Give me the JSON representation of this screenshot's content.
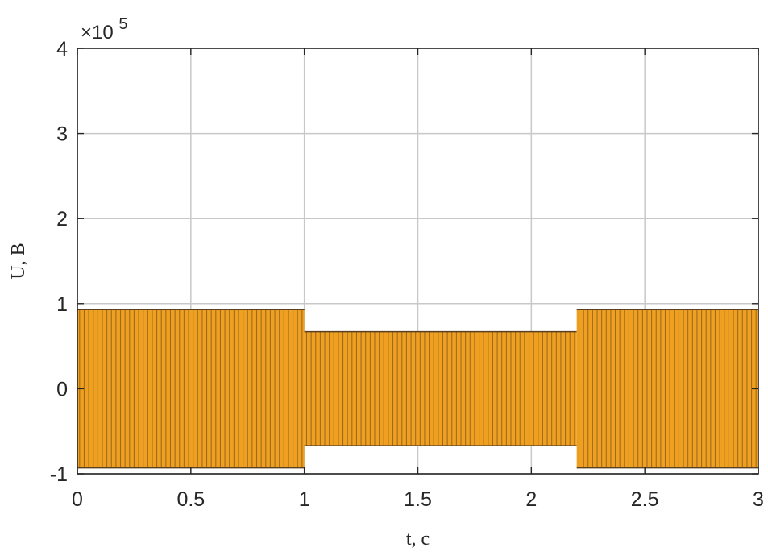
{
  "chart_data": {
    "type": "line",
    "title": "",
    "xlabel": "t, c",
    "ylabel": "U, B",
    "y_multiplier_base": "×10",
    "y_multiplier_exponent": "5",
    "xlim": [
      0,
      3
    ],
    "ylim": [
      -1,
      4
    ],
    "x_ticks": [
      "0",
      "0.5",
      "1",
      "1.5",
      "2",
      "2.5",
      "3"
    ],
    "y_ticks": [
      "-1",
      "0",
      "1",
      "2",
      "3",
      "4"
    ],
    "x_tick_values": [
      0,
      0.5,
      1,
      1.5,
      2,
      2.5,
      3
    ],
    "y_tick_values": [
      -1,
      0,
      1,
      2,
      3,
      4
    ],
    "grid": true,
    "series_color": "#f0a020",
    "series_dark_color": "#5a4020",
    "segments": [
      {
        "t_start": 0,
        "t_end": 1.0,
        "amplitude": 0.93
      },
      {
        "t_start": 1.0,
        "t_end": 2.2,
        "amplitude": 0.67
      },
      {
        "t_start": 2.2,
        "t_end": 3.0,
        "amplitude": 0.93
      }
    ],
    "frequency_hz": 50
  }
}
